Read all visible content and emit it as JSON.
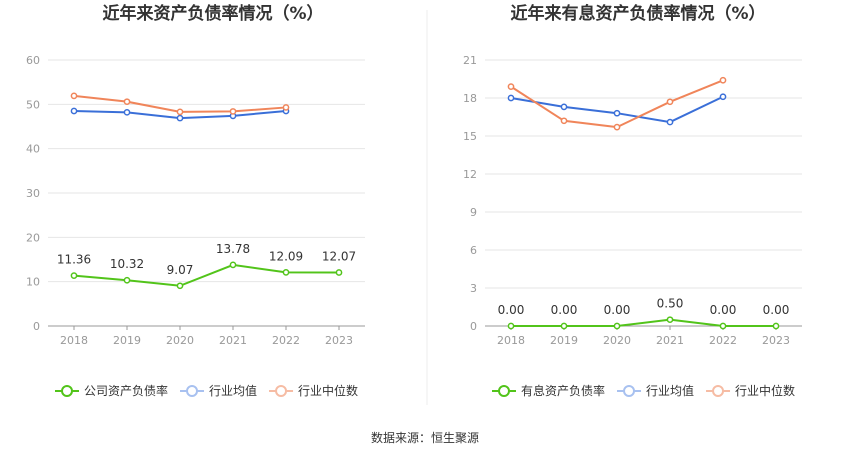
{
  "chart_data": [
    {
      "type": "line",
      "title": "近年来资产负债率情况（%）",
      "categories": [
        "2018",
        "2019",
        "2020",
        "2021",
        "2022",
        "2023"
      ],
      "ylim": [
        0,
        60
      ],
      "yticks": [
        0,
        10,
        20,
        30,
        40,
        50,
        60
      ],
      "grid": true,
      "legend_position": "bottom",
      "series": [
        {
          "name": "公司资产负债率",
          "color": "#52c41a",
          "values": [
            11.36,
            10.32,
            9.07,
            13.78,
            12.09,
            12.07
          ],
          "labels": [
            "11.36",
            "10.32",
            "9.07",
            "13.78",
            "12.09",
            "12.07"
          ]
        },
        {
          "name": "行业均值",
          "color": "#3a6fd8",
          "values": [
            48.5,
            48.2,
            46.9,
            47.4,
            48.5,
            null
          ]
        },
        {
          "name": "行业中位数",
          "color": "#f0855a",
          "values": [
            51.9,
            50.6,
            48.3,
            48.4,
            49.3,
            null
          ]
        }
      ]
    },
    {
      "type": "line",
      "title": "近年来有息资产负债率情况（%）",
      "categories": [
        "2018",
        "2019",
        "2020",
        "2021",
        "2022",
        "2023"
      ],
      "ylim": [
        0,
        21
      ],
      "yticks": [
        0,
        3,
        6,
        9,
        12,
        15,
        18,
        21
      ],
      "grid": true,
      "legend_position": "bottom",
      "series": [
        {
          "name": "有息资产负债率",
          "color": "#52c41a",
          "values": [
            0.0,
            0.0,
            0.0,
            0.5,
            0.0,
            0.0
          ],
          "labels": [
            "0.00",
            "0.00",
            "0.00",
            "0.50",
            "0.00",
            "0.00"
          ]
        },
        {
          "name": "行业均值",
          "color": "#3a6fd8",
          "values": [
            18.0,
            17.3,
            16.8,
            16.1,
            18.1,
            null
          ]
        },
        {
          "name": "行业中位数",
          "color": "#f0855a",
          "values": [
            18.9,
            16.2,
            15.7,
            17.7,
            19.4,
            null
          ]
        }
      ]
    }
  ],
  "footer": "数据来源：恒生聚源"
}
